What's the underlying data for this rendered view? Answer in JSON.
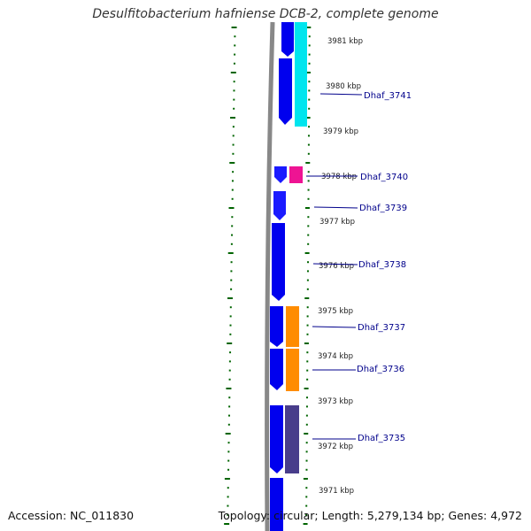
{
  "title": "Desulfitobacterium hafniense DCB-2, complete genome",
  "accession": "Accession: NC_011830",
  "summary": "Topology: circular; Length: 5,279,134 bp; Genes: 4,972",
  "colors": {
    "backbone": "#808080",
    "cds_forward": "#0000ee",
    "cds_forward_light": "#4040ff",
    "cyan": "#00e5ee",
    "magenta": "#ee1493",
    "orange": "#ff8c00",
    "slate": "#483d8b",
    "ticks": "#006400",
    "label": "#00008b"
  },
  "kbp_labels": [
    "3981 kbp",
    "3980 kbp",
    "3979 kbp",
    "3978 kbp",
    "3977 kbp",
    "3976 kbp",
    "3975 kbp",
    "3974 kbp",
    "3973 kbp",
    "3972 kbp",
    "3971 kbp"
  ],
  "gene_labels": [
    "Dhaf_3741",
    "Dhaf_3740",
    "Dhaf_3739",
    "Dhaf_3738",
    "Dhaf_3737",
    "Dhaf_3736",
    "Dhaf_3735"
  ]
}
